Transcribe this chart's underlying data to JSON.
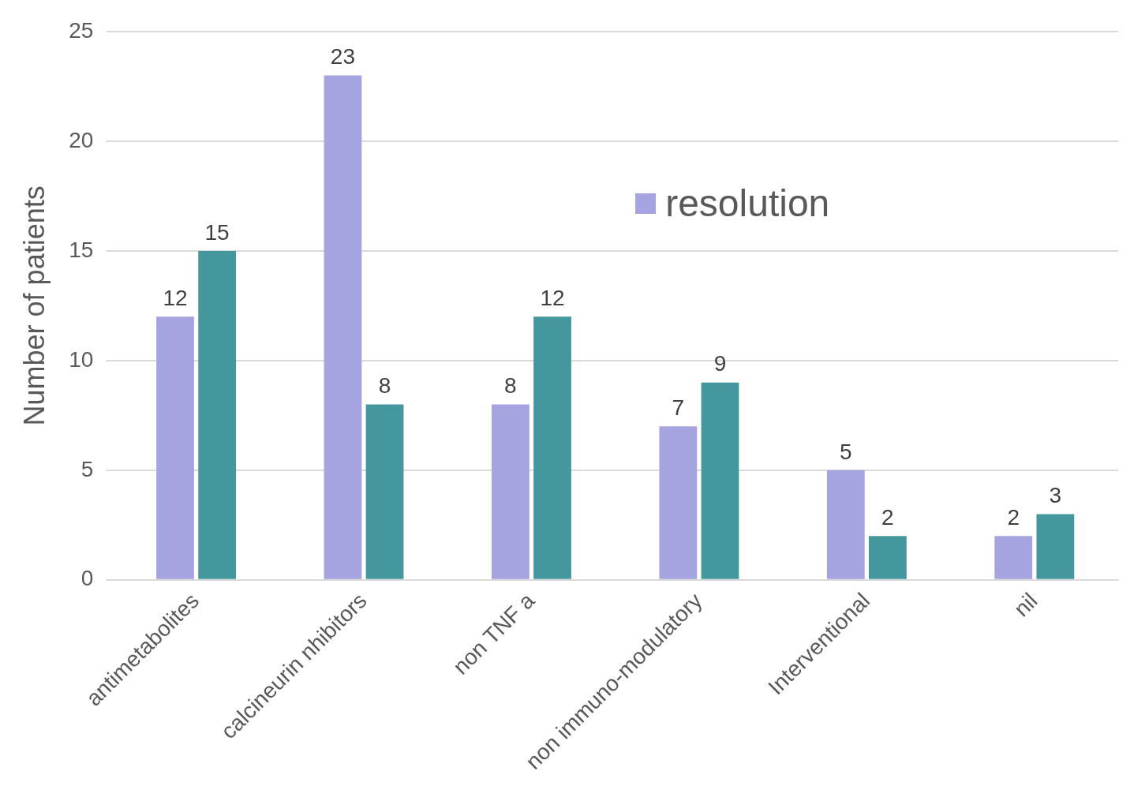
{
  "chart_data": {
    "type": "bar",
    "ylabel": "Number of patients",
    "categories": [
      "antimetabolites",
      "calcineurin nhibitors",
      "non TNF a",
      "non immuno-modulatory",
      "Interventional",
      "nil"
    ],
    "series": [
      {
        "name": "resolution",
        "color": "#a5a3e0",
        "values": [
          12,
          23,
          8,
          7,
          5,
          2
        ]
      },
      {
        "color": "#45979e",
        "values": [
          15,
          8,
          12,
          9,
          2,
          3
        ]
      }
    ],
    "ylim": [
      0,
      25
    ],
    "yticks": [
      0,
      5,
      10,
      15,
      20,
      25
    ],
    "grid": "y",
    "legend": "top right",
    "data_labels": true
  }
}
